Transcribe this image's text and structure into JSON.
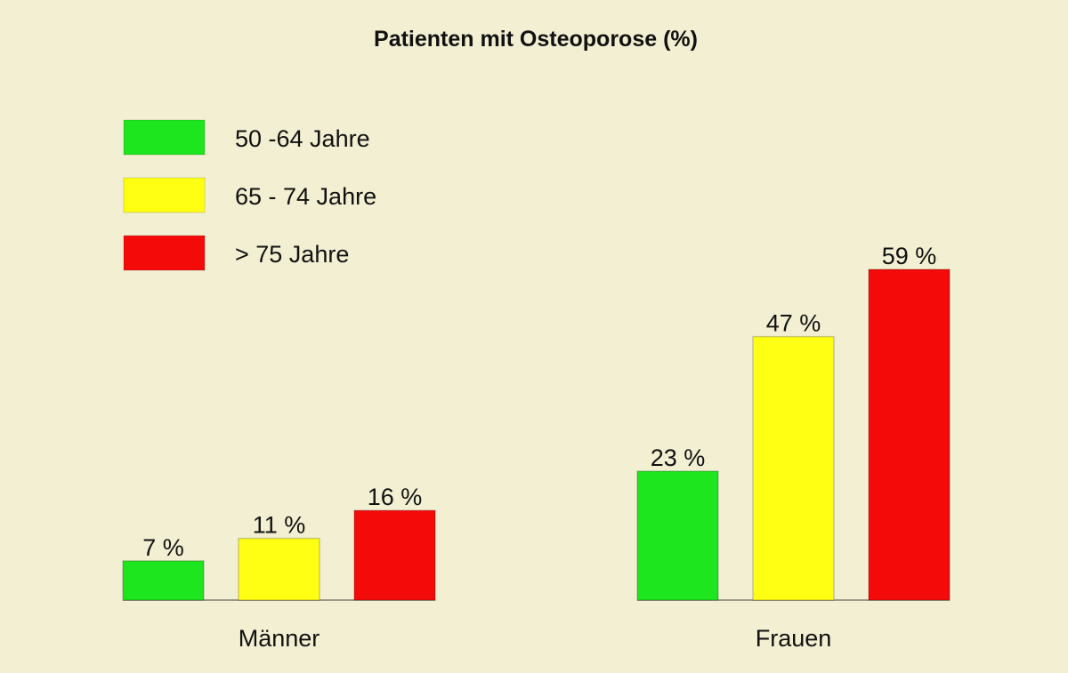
{
  "chart_data": {
    "type": "bar",
    "title": "Patienten mit Osteoporose (%)",
    "categories": [
      "Männer",
      "Frauen"
    ],
    "series": [
      {
        "name": "50 -64 Jahre",
        "color": "#1ee61e",
        "values": [
          7,
          23
        ],
        "labels": [
          "7 %",
          "23 %"
        ]
      },
      {
        "name": "65 - 74 Jahre",
        "color": "#ffff14",
        "values": [
          11,
          47
        ],
        "labels": [
          "11 %",
          "47 %"
        ]
      },
      {
        "name": "> 75 Jahre",
        "color": "#f50a0a",
        "values": [
          16,
          59
        ],
        "labels": [
          "16 %",
          "59 %"
        ]
      }
    ],
    "ylim": [
      0,
      59
    ],
    "grid": false,
    "legend": "top-left"
  }
}
